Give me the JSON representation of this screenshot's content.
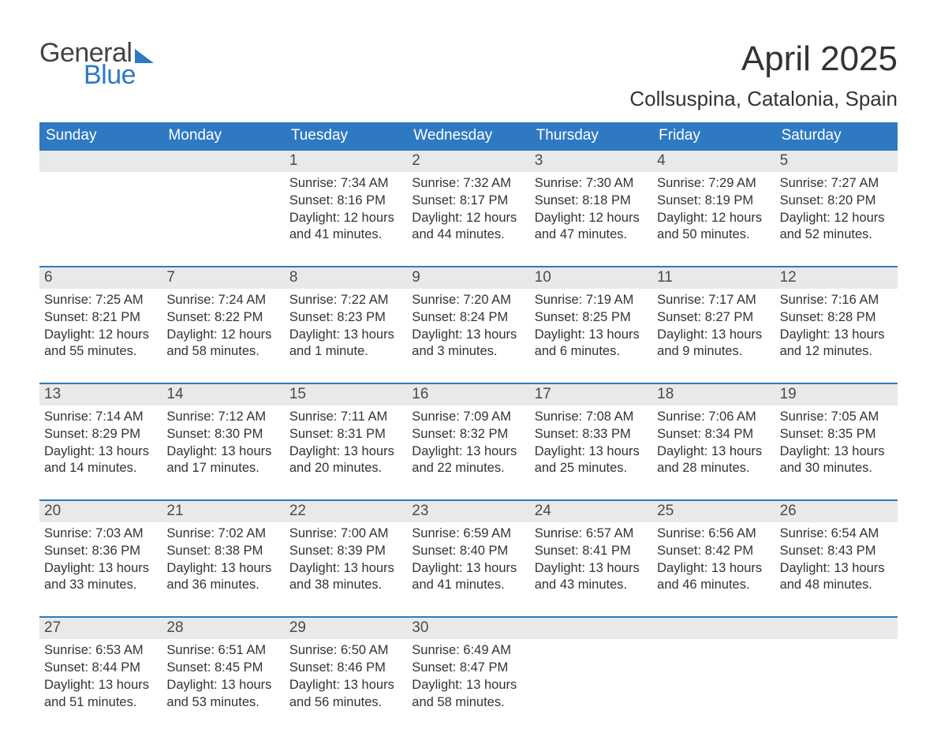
{
  "logo": {
    "general": "General",
    "blue": "Blue"
  },
  "title": "April 2025",
  "location": "Collsuspina, Catalonia, Spain",
  "day_headers": [
    "Sunday",
    "Monday",
    "Tuesday",
    "Wednesday",
    "Thursday",
    "Friday",
    "Saturday"
  ],
  "colors": {
    "header_bg": "#2f79c2",
    "header_text": "#ffffff",
    "week_border": "#2f79c2",
    "daynum_bg": "#e9e9e9",
    "body_text": "#333333",
    "page_bg": "#ffffff"
  },
  "typography": {
    "title_fontsize": 44,
    "location_fontsize": 26,
    "header_fontsize": 19,
    "daynum_fontsize": 19,
    "body_fontsize": 16.5
  },
  "labels": {
    "sunrise": "Sunrise: ",
    "sunset": "Sunset: ",
    "daylight": "Daylight: "
  },
  "weeks": [
    [
      {
        "day": "",
        "sunrise": "",
        "sunset": "",
        "daylight": ""
      },
      {
        "day": "",
        "sunrise": "",
        "sunset": "",
        "daylight": ""
      },
      {
        "day": "1",
        "sunrise": "7:34 AM",
        "sunset": "8:16 PM",
        "daylight": "12 hours and 41 minutes."
      },
      {
        "day": "2",
        "sunrise": "7:32 AM",
        "sunset": "8:17 PM",
        "daylight": "12 hours and 44 minutes."
      },
      {
        "day": "3",
        "sunrise": "7:30 AM",
        "sunset": "8:18 PM",
        "daylight": "12 hours and 47 minutes."
      },
      {
        "day": "4",
        "sunrise": "7:29 AM",
        "sunset": "8:19 PM",
        "daylight": "12 hours and 50 minutes."
      },
      {
        "day": "5",
        "sunrise": "7:27 AM",
        "sunset": "8:20 PM",
        "daylight": "12 hours and 52 minutes."
      }
    ],
    [
      {
        "day": "6",
        "sunrise": "7:25 AM",
        "sunset": "8:21 PM",
        "daylight": "12 hours and 55 minutes."
      },
      {
        "day": "7",
        "sunrise": "7:24 AM",
        "sunset": "8:22 PM",
        "daylight": "12 hours and 58 minutes."
      },
      {
        "day": "8",
        "sunrise": "7:22 AM",
        "sunset": "8:23 PM",
        "daylight": "13 hours and 1 minute."
      },
      {
        "day": "9",
        "sunrise": "7:20 AM",
        "sunset": "8:24 PM",
        "daylight": "13 hours and 3 minutes."
      },
      {
        "day": "10",
        "sunrise": "7:19 AM",
        "sunset": "8:25 PM",
        "daylight": "13 hours and 6 minutes."
      },
      {
        "day": "11",
        "sunrise": "7:17 AM",
        "sunset": "8:27 PM",
        "daylight": "13 hours and 9 minutes."
      },
      {
        "day": "12",
        "sunrise": "7:16 AM",
        "sunset": "8:28 PM",
        "daylight": "13 hours and 12 minutes."
      }
    ],
    [
      {
        "day": "13",
        "sunrise": "7:14 AM",
        "sunset": "8:29 PM",
        "daylight": "13 hours and 14 minutes."
      },
      {
        "day": "14",
        "sunrise": "7:12 AM",
        "sunset": "8:30 PM",
        "daylight": "13 hours and 17 minutes."
      },
      {
        "day": "15",
        "sunrise": "7:11 AM",
        "sunset": "8:31 PM",
        "daylight": "13 hours and 20 minutes."
      },
      {
        "day": "16",
        "sunrise": "7:09 AM",
        "sunset": "8:32 PM",
        "daylight": "13 hours and 22 minutes."
      },
      {
        "day": "17",
        "sunrise": "7:08 AM",
        "sunset": "8:33 PM",
        "daylight": "13 hours and 25 minutes."
      },
      {
        "day": "18",
        "sunrise": "7:06 AM",
        "sunset": "8:34 PM",
        "daylight": "13 hours and 28 minutes."
      },
      {
        "day": "19",
        "sunrise": "7:05 AM",
        "sunset": "8:35 PM",
        "daylight": "13 hours and 30 minutes."
      }
    ],
    [
      {
        "day": "20",
        "sunrise": "7:03 AM",
        "sunset": "8:36 PM",
        "daylight": "13 hours and 33 minutes."
      },
      {
        "day": "21",
        "sunrise": "7:02 AM",
        "sunset": "8:38 PM",
        "daylight": "13 hours and 36 minutes."
      },
      {
        "day": "22",
        "sunrise": "7:00 AM",
        "sunset": "8:39 PM",
        "daylight": "13 hours and 38 minutes."
      },
      {
        "day": "23",
        "sunrise": "6:59 AM",
        "sunset": "8:40 PM",
        "daylight": "13 hours and 41 minutes."
      },
      {
        "day": "24",
        "sunrise": "6:57 AM",
        "sunset": "8:41 PM",
        "daylight": "13 hours and 43 minutes."
      },
      {
        "day": "25",
        "sunrise": "6:56 AM",
        "sunset": "8:42 PM",
        "daylight": "13 hours and 46 minutes."
      },
      {
        "day": "26",
        "sunrise": "6:54 AM",
        "sunset": "8:43 PM",
        "daylight": "13 hours and 48 minutes."
      }
    ],
    [
      {
        "day": "27",
        "sunrise": "6:53 AM",
        "sunset": "8:44 PM",
        "daylight": "13 hours and 51 minutes."
      },
      {
        "day": "28",
        "sunrise": "6:51 AM",
        "sunset": "8:45 PM",
        "daylight": "13 hours and 53 minutes."
      },
      {
        "day": "29",
        "sunrise": "6:50 AM",
        "sunset": "8:46 PM",
        "daylight": "13 hours and 56 minutes."
      },
      {
        "day": "30",
        "sunrise": "6:49 AM",
        "sunset": "8:47 PM",
        "daylight": "13 hours and 58 minutes."
      },
      {
        "day": "",
        "sunrise": "",
        "sunset": "",
        "daylight": ""
      },
      {
        "day": "",
        "sunrise": "",
        "sunset": "",
        "daylight": ""
      },
      {
        "day": "",
        "sunrise": "",
        "sunset": "",
        "daylight": ""
      }
    ]
  ]
}
